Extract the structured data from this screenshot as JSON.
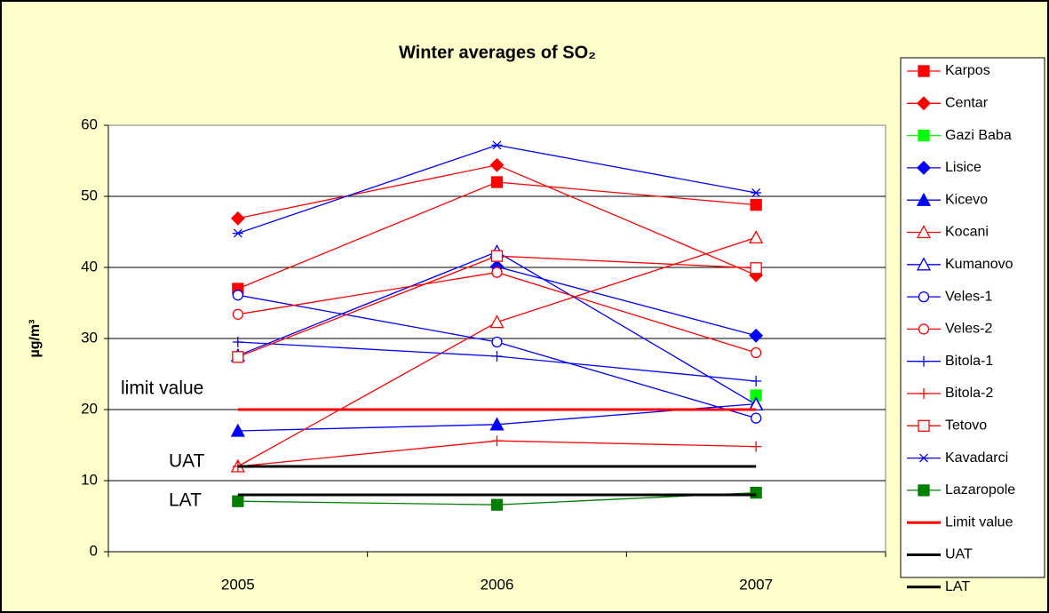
{
  "chart_data": {
    "type": "line",
    "title": "Winter averages of SO₂",
    "y_label": "µg/m³",
    "categories": [
      "2005",
      "2006",
      "2007"
    ],
    "ylim": [
      0,
      60
    ],
    "yticks": [
      0,
      10,
      20,
      30,
      40,
      50,
      60
    ],
    "grid": true,
    "legend": "right",
    "annotations": [
      "limit value",
      "UAT",
      "LAT"
    ],
    "series": [
      {
        "name": "Karpos",
        "color": "#ff0000",
        "marker": "square",
        "filled": true,
        "values": [
          37,
          52,
          48.8
        ]
      },
      {
        "name": "Centar",
        "color": "#ff0000",
        "marker": "diamond",
        "filled": true,
        "values": [
          46.9,
          54.4,
          38.9
        ]
      },
      {
        "name": "Gazi Baba",
        "color": "#00ff00",
        "marker": "square",
        "filled": true,
        "values": [
          null,
          null,
          22
        ]
      },
      {
        "name": "Lisice",
        "color": "#0000ff",
        "marker": "diamond",
        "filled": true,
        "values": [
          null,
          40.1,
          30.4
        ]
      },
      {
        "name": "Kicevo",
        "color": "#0000ff",
        "marker": "triangle",
        "filled": true,
        "values": [
          17,
          17.9,
          20.8
        ]
      },
      {
        "name": "Kocani",
        "color": "#ff0000",
        "marker": "triangle",
        "filled": false,
        "values": [
          12,
          32.3,
          44.2
        ]
      },
      {
        "name": "Kumanovo",
        "color": "#0000ff",
        "marker": "triangle",
        "filled": false,
        "values": [
          27.6,
          42.2,
          20.7
        ]
      },
      {
        "name": "Veles-1",
        "color": "#0000ff",
        "marker": "circle",
        "filled": false,
        "values": [
          36.1,
          29.5,
          18.8
        ]
      },
      {
        "name": "Veles-2",
        "color": "#ff0000",
        "marker": "circle",
        "filled": false,
        "values": [
          33.4,
          39.3,
          28
        ]
      },
      {
        "name": "Bitola-1",
        "color": "#0000ff",
        "marker": "plus",
        "filled": false,
        "values": [
          29.5,
          27.5,
          24
        ]
      },
      {
        "name": "Bitola-2",
        "color": "#ff0000",
        "marker": "plus",
        "filled": false,
        "values": [
          12,
          15.6,
          14.8
        ]
      },
      {
        "name": "Tetovo",
        "color": "#ff0000",
        "marker": "square",
        "filled": false,
        "values": [
          27.4,
          41.6,
          39.9
        ]
      },
      {
        "name": "Kavadarci",
        "color": "#0000ff",
        "marker": "star",
        "filled": false,
        "values": [
          44.8,
          57.2,
          50.5
        ]
      },
      {
        "name": "Lazaropole",
        "color": "#008000",
        "marker": "square",
        "filled": true,
        "values": [
          7.1,
          6.6,
          8.3
        ]
      },
      {
        "name": "Limit value",
        "color": "#ff0000",
        "marker": "none",
        "width": 3,
        "values": [
          20,
          20,
          20
        ]
      },
      {
        "name": "UAT",
        "color": "#000000",
        "marker": "none",
        "width": 3,
        "values": [
          12,
          12,
          12
        ]
      },
      {
        "name": "LAT",
        "color": "#000000",
        "marker": "none",
        "width": 3,
        "values": [
          8,
          8,
          8
        ]
      }
    ]
  }
}
